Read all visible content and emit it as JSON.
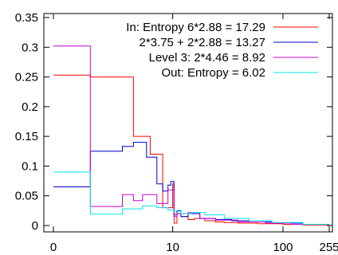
{
  "chart_data": {
    "type": "line",
    "title": "",
    "xlabel": "",
    "ylabel": "",
    "ylim": [
      0,
      0.35
    ],
    "x_scale": "log(1+x)",
    "x_ticks": [
      {
        "value": 0,
        "label": "0"
      },
      {
        "value": 10,
        "label": "10"
      },
      {
        "value": 100,
        "label": "100"
      },
      {
        "value": 255,
        "label": "255"
      }
    ],
    "y_ticks": [
      {
        "value": 0,
        "label": "0"
      },
      {
        "value": 0.05,
        "label": "0.05"
      },
      {
        "value": 0.1,
        "label": "0.1"
      },
      {
        "value": 0.15,
        "label": "0.15"
      },
      {
        "value": 0.2,
        "label": "0.2"
      },
      {
        "value": 0.25,
        "label": "0.25"
      },
      {
        "value": 0.3,
        "label": "0.3"
      },
      {
        "value": 0.35,
        "label": "0.35"
      }
    ],
    "grid": false,
    "legend_position": "top-right",
    "series": [
      {
        "name": "In:   Entropy 6*2.88 = 17.29",
        "color": "#ff0000",
        "steps": [
          [
            0,
            0.253
          ],
          [
            1,
            0.253
          ],
          [
            1.1,
            0.25
          ],
          [
            4,
            0.15
          ],
          [
            6,
            0.12
          ],
          [
            8,
            0.03
          ],
          [
            10,
            0.07
          ],
          [
            10.3,
            0.004
          ],
          [
            11,
            0.02
          ],
          [
            12,
            0.015
          ],
          [
            14,
            0.01
          ],
          [
            16,
            0.012
          ],
          [
            20,
            0.008
          ],
          [
            25,
            0.006
          ],
          [
            30,
            0.005
          ],
          [
            40,
            0.004
          ],
          [
            60,
            0.003
          ],
          [
            100,
            0.002
          ],
          [
            150,
            0.001
          ],
          [
            255,
            0.001
          ]
        ]
      },
      {
        "name": "2*3.75 + 2*2.88 = 13.27",
        "color": "#0000cc",
        "steps": [
          [
            0,
            0.065
          ],
          [
            1,
            0.065
          ],
          [
            1.1,
            0.125
          ],
          [
            3,
            0.133
          ],
          [
            4,
            0.14
          ],
          [
            5.5,
            0.115
          ],
          [
            7,
            0.07
          ],
          [
            8,
            0.058
          ],
          [
            9,
            0.068
          ],
          [
            9.6,
            0.074
          ],
          [
            10.3,
            0.018
          ],
          [
            11,
            0.025
          ],
          [
            12,
            0.015
          ],
          [
            14,
            0.02
          ],
          [
            18,
            0.012
          ],
          [
            25,
            0.01
          ],
          [
            35,
            0.008
          ],
          [
            50,
            0.006
          ],
          [
            80,
            0.004
          ],
          [
            150,
            0.002
          ],
          [
            255,
            0.001
          ]
        ]
      },
      {
        "name": "Level 3:   2*4.46  =  8.92",
        "color": "#cc00cc",
        "steps": [
          [
            0,
            0.302
          ],
          [
            1,
            0.302
          ],
          [
            1.1,
            0.032
          ],
          [
            3,
            0.052
          ],
          [
            4,
            0.042
          ],
          [
            5,
            0.052
          ],
          [
            7,
            0.037
          ],
          [
            9,
            0.06
          ],
          [
            10.3,
            0.015
          ],
          [
            11,
            0.02
          ],
          [
            14,
            0.022
          ],
          [
            18,
            0.012
          ],
          [
            25,
            0.009
          ],
          [
            40,
            0.006
          ],
          [
            70,
            0.004
          ],
          [
            120,
            0.002
          ],
          [
            255,
            0.001
          ]
        ]
      },
      {
        "name": "Out: Entropy  =  6.02",
        "color": "#00e5ee",
        "steps": [
          [
            0,
            0.09
          ],
          [
            1,
            0.09
          ],
          [
            1.1,
            0.019
          ],
          [
            3,
            0.028
          ],
          [
            5,
            0.033
          ],
          [
            7,
            0.03
          ],
          [
            9,
            0.026
          ],
          [
            10.3,
            0.024
          ],
          [
            12,
            0.02
          ],
          [
            15,
            0.022
          ],
          [
            20,
            0.018
          ],
          [
            30,
            0.012
          ],
          [
            50,
            0.008
          ],
          [
            80,
            0.005
          ],
          [
            150,
            0.002
          ],
          [
            255,
            0.001
          ]
        ]
      }
    ]
  }
}
